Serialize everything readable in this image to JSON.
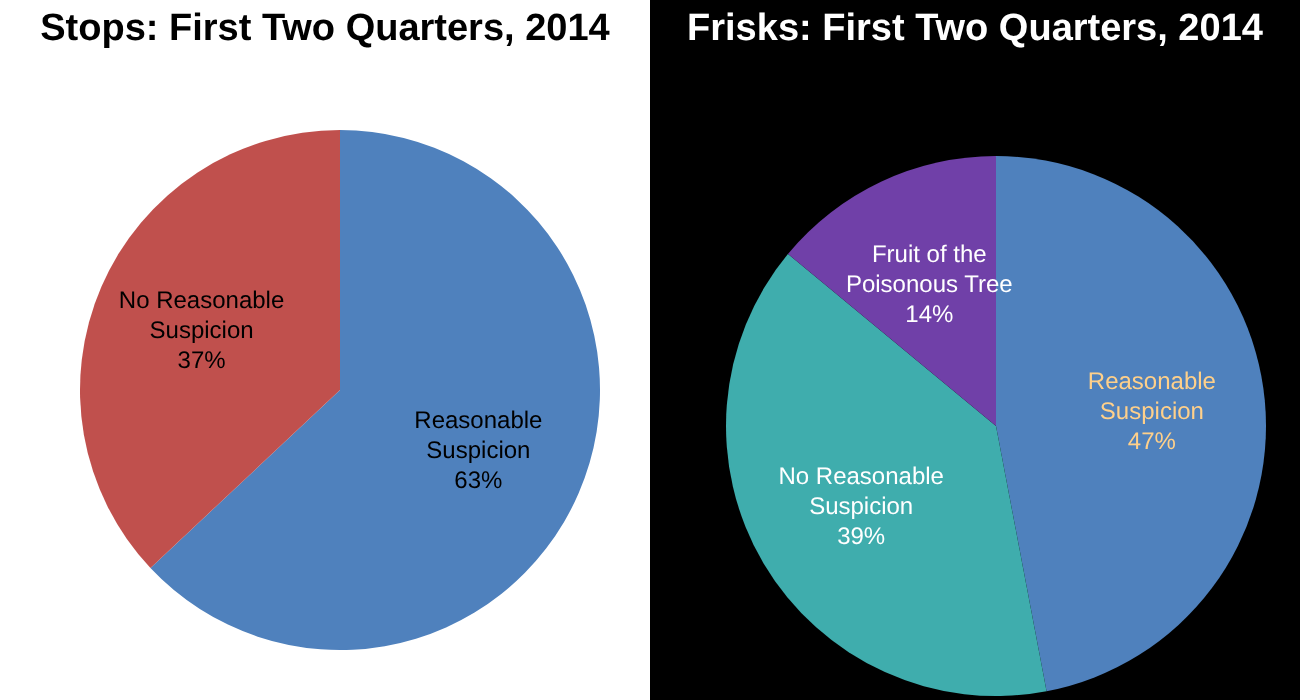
{
  "chart_data": [
    {
      "type": "pie",
      "title": "Stops: First Two Quarters, 2014",
      "categories": [
        "Reasonable Suspicion",
        "No Reasonable Suspicion"
      ],
      "values": [
        63,
        37
      ],
      "colors": [
        "#4f81bd",
        "#c0504d"
      ],
      "value_labels": [
        "63%",
        "37%"
      ]
    },
    {
      "type": "pie",
      "title": "Frisks: First Two Quarters, 2014",
      "categories": [
        "Reasonable Suspicion",
        "No Reasonable Suspicion",
        "Fruit of the Poisonous Tree"
      ],
      "values": [
        47,
        39,
        14
      ],
      "colors": [
        "#4f81bd",
        "#3fadad",
        "#7040a8"
      ],
      "value_labels": [
        "47%",
        "39%",
        "14%"
      ]
    }
  ]
}
